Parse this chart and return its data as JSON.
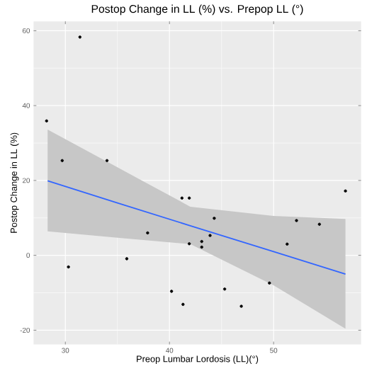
{
  "chart_data": {
    "type": "scatter",
    "title": "Postop Change in LL (%) vs. Prepop LL (°)",
    "xlabel": "Preop Lumbar Lordosis (LL)(°)",
    "ylabel": "Postop Change in LL (%)",
    "xlim": [
      26.95,
      58.4
    ],
    "ylim": [
      -23.8,
      62.5
    ],
    "xticks": [
      30,
      40,
      50
    ],
    "yticks": [
      -20,
      0,
      20,
      40,
      60
    ],
    "grid": true,
    "series": [
      {
        "marker": "circle",
        "color": "#000000",
        "x": [
          28.2,
          31.4,
          29.7,
          34.0,
          30.3,
          35.9,
          37.9,
          40.2,
          41.3,
          41.2,
          41.9,
          41.9,
          43.1,
          43.1,
          43.9,
          44.3,
          45.3,
          46.9,
          49.6,
          51.3,
          52.2,
          54.4,
          56.9
        ],
        "values": [
          35.9,
          58.3,
          25.3,
          25.3,
          -3.1,
          -0.9,
          6.0,
          -9.6,
          -13.1,
          15.3,
          15.3,
          3.1,
          3.7,
          2.2,
          5.3,
          9.9,
          -9.0,
          -13.6,
          -7.4,
          3.0,
          9.3,
          8.3,
          17.2
        ]
      },
      {
        "type": "line",
        "marker": "none",
        "color": "#3366ff",
        "x": [
          28.3,
          35,
          42,
          50,
          56.9
        ],
        "values": [
          19.9,
          14.0,
          7.9,
          1.0,
          -5.0
        ],
        "lower": [
          6.4,
          4.7,
          3.0,
          -8.0,
          -19.6
        ],
        "upper": [
          33.6,
          23.5,
          13.0,
          10.5,
          9.7
        ]
      }
    ]
  }
}
